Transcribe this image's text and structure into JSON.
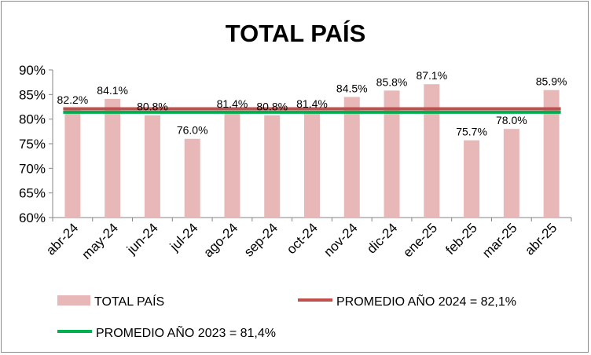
{
  "chart_data": {
    "type": "bar",
    "title": "TOTAL PAÍS",
    "categories": [
      "abr-24",
      "may-24",
      "jun-24",
      "jul-24",
      "ago-24",
      "sep-24",
      "oct-24",
      "nov-24",
      "dic-24",
      "ene-25",
      "feb-25",
      "mar-25",
      "abr-25"
    ],
    "series": [
      {
        "name": "TOTAL PAÍS",
        "type": "bar",
        "color": "#e8b8b8",
        "values": [
          82.2,
          84.1,
          80.8,
          76.0,
          81.4,
          80.8,
          81.4,
          84.5,
          85.8,
          87.1,
          75.7,
          78.0,
          85.9
        ],
        "labels": [
          "82.2%",
          "84.1%",
          "80.8%",
          "76.0%",
          "81.4%",
          "80.8%",
          "81.4%",
          "84.5%",
          "85.8%",
          "87.1%",
          "75.7%",
          "78.0%",
          "85.9%"
        ]
      },
      {
        "name": "PROMEDIO AÑO 2024 = 82,1%",
        "type": "line",
        "color": "#c0504d",
        "value": 82.1
      },
      {
        "name": "PROMEDIO AÑO 2023 = 81,4%",
        "type": "line",
        "color": "#00b050",
        "value": 81.4
      }
    ],
    "ylim": [
      60,
      90
    ],
    "yticks": [
      "60%",
      "65%",
      "70%",
      "75%",
      "80%",
      "85%",
      "90%"
    ],
    "ytick_values": [
      60,
      65,
      70,
      75,
      80,
      85,
      90
    ],
    "grid": false,
    "legend": "bottom"
  }
}
